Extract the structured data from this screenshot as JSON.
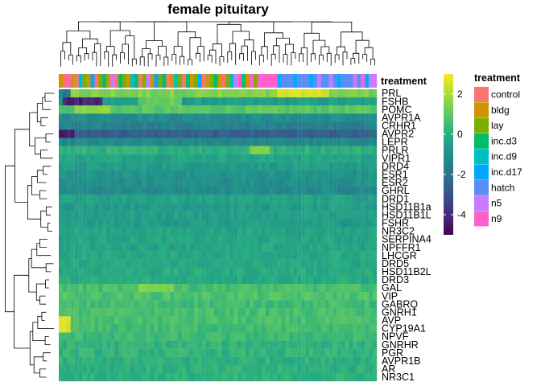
{
  "chart_data": {
    "type": "heatmap",
    "title": "female pituitary",
    "row_labels": [
      "PRL",
      "FSHB",
      "POMC",
      "AVPR1A",
      "CRHR1",
      "AVPR2",
      "LEPR",
      "PRLR",
      "VIPR1",
      "DRD4",
      "ESR1",
      "ESR2",
      "GHRL",
      "DRD1",
      "HSD11B1a",
      "HSD11B1L",
      "FSHR",
      "NR3C2",
      "SERPINA4",
      "NPFFR1",
      "LHCGR",
      "DRD5",
      "HSD11B2L",
      "DRD3",
      "GAL",
      "VIP",
      "GABRQ",
      "GNRH1",
      "AVP",
      "CYP19A1",
      "NPVF",
      "GNRHR",
      "PGR",
      "AVPR1B",
      "AR",
      "NR3C1"
    ],
    "row_means": [
      1.8,
      -0.6,
      0.9,
      -1.1,
      -1.5,
      -2.6,
      -1.3,
      0.1,
      -0.3,
      -0.6,
      -0.9,
      -1.0,
      -1.2,
      -0.4,
      -0.6,
      -0.5,
      -0.6,
      -0.3,
      -0.3,
      -0.3,
      -0.2,
      -0.2,
      -0.1,
      -0.1,
      0.6,
      0.7,
      0.5,
      0.6,
      0.6,
      0.5,
      0.4,
      0.2,
      0.2,
      0.1,
      0.1,
      0.1
    ],
    "n_samples": 80,
    "color_scale": {
      "ticks": [
        2,
        0,
        -2,
        -4
      ],
      "min": -5,
      "max": 3,
      "colors": [
        "#440154",
        "#472D7B",
        "#3B528B",
        "#2C728E",
        "#21908C",
        "#27AD81",
        "#5DC863",
        "#AADC32",
        "#FDE725"
      ]
    },
    "annotation": {
      "title": "treatment",
      "levels": [
        {
          "name": "control",
          "color": "#F8766D"
        },
        {
          "name": "bldg",
          "color": "#CD9600"
        },
        {
          "name": "lay",
          "color": "#7CAE00"
        },
        {
          "name": "inc.d3",
          "color": "#00BE67"
        },
        {
          "name": "inc.d9",
          "color": "#00BFC4"
        },
        {
          "name": "inc.d17",
          "color": "#00A9FF"
        },
        {
          "name": "hatch",
          "color": "#5B8DF6"
        },
        {
          "name": "n5",
          "color": "#C77CFF"
        },
        {
          "name": "n9",
          "color": "#FF61CC"
        }
      ],
      "sample_groups": [
        "bldg",
        "control",
        "n9",
        "bldg",
        "control",
        "inc.d9",
        "lay",
        "bldg",
        "inc.d17",
        "control",
        "lay",
        "inc.d3",
        "bldg",
        "n5",
        "control",
        "inc.d3",
        "lay",
        "bldg",
        "inc.d9",
        "inc.d3",
        "control",
        "lay",
        "n5",
        "bldg",
        "inc.d17",
        "lay",
        "inc.d3",
        "control",
        "bldg",
        "inc.d9",
        "lay",
        "control",
        "inc.d3",
        "bldg",
        "lay",
        "inc.d17",
        "control",
        "bldg",
        "lay",
        "inc.d3",
        "bldg",
        "control",
        "lay",
        "inc.d9",
        "n5",
        "n9",
        "inc.d3",
        "bldg",
        "n9",
        "lay",
        "n9",
        "n9",
        "n9",
        "n9",
        "n9",
        "inc.d17",
        "hatch",
        "hatch",
        "hatch",
        "inc.d17",
        "hatch",
        "hatch",
        "hatch",
        "inc.d17",
        "hatch",
        "n5",
        "hatch",
        "hatch",
        "n5",
        "hatch",
        "inc.d17",
        "hatch",
        "hatch",
        "hatch",
        "n5",
        "hatch",
        "n9",
        "inc.d17",
        "n5",
        "n5"
      ]
    }
  }
}
